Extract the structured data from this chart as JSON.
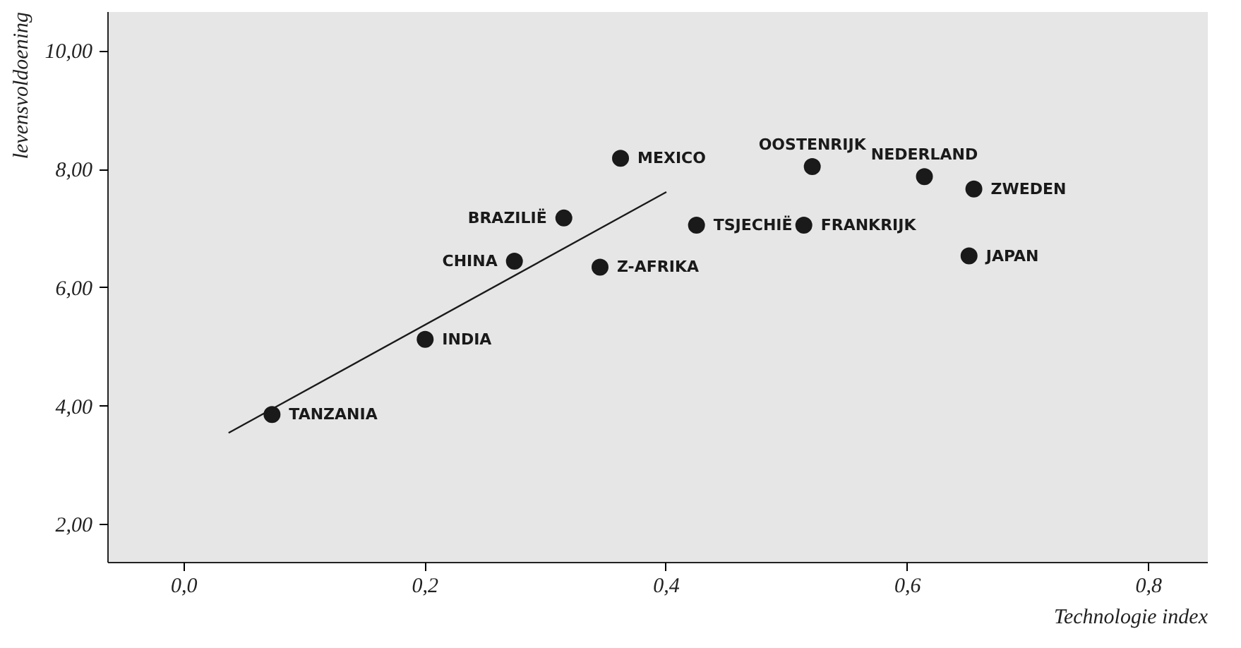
{
  "chart_data": {
    "type": "scatter",
    "xlabel": "Technologie index",
    "ylabel": "levensvoldoening",
    "xlim": [
      -0.063,
      0.849
    ],
    "ylim": [
      1.36,
      10.66
    ],
    "xticks": [
      {
        "value": 0,
        "label": "0,0"
      },
      {
        "value": 0.2,
        "label": "0,2"
      },
      {
        "value": 0.4,
        "label": "0,4"
      },
      {
        "value": 0.6,
        "label": "0,6"
      },
      {
        "value": 0.8,
        "label": "0,8"
      }
    ],
    "yticks": [
      {
        "value": 2,
        "label": "2,00"
      },
      {
        "value": 4,
        "label": "4,00"
      },
      {
        "value": 6,
        "label": "6,00"
      },
      {
        "value": 8,
        "label": "8,00"
      },
      {
        "value": 10,
        "label": "10,00"
      }
    ],
    "series": [
      {
        "marker": "circle",
        "color": "#1a1a1a",
        "x": [
          0.073,
          0.2,
          0.274,
          0.315,
          0.345,
          0.362,
          0.425,
          0.514,
          0.521,
          0.614,
          0.655,
          0.651
        ],
        "values": [
          3.86,
          5.13,
          6.45,
          7.18,
          6.35,
          8.19,
          7.06,
          7.06,
          8.05,
          7.88,
          7.67,
          6.54
        ]
      },
      {
        "type": "line",
        "color": "#1a1a1a",
        "x": [
          0.037,
          0.4
        ],
        "values": [
          3.55,
          7.62
        ]
      }
    ],
    "annotations": [
      {
        "text": "TANZANIA",
        "x": 0.073,
        "y": 3.86
      },
      {
        "text": "INDIA",
        "x": 0.2,
        "y": 5.13
      },
      {
        "text": "CHINA",
        "x": 0.274,
        "y": 6.45
      },
      {
        "text": "BRAZILIË",
        "x": 0.315,
        "y": 7.18
      },
      {
        "text": "Z-AFRIKA",
        "x": 0.345,
        "y": 6.35
      },
      {
        "text": "MEXICO",
        "x": 0.362,
        "y": 8.19
      },
      {
        "text": "TSJECHIË",
        "x": 0.425,
        "y": 7.06
      },
      {
        "text": "FRANKRIJK",
        "x": 0.514,
        "y": 7.06
      },
      {
        "text": "OOSTENRIJK",
        "x": 0.521,
        "y": 8.05
      },
      {
        "text": "NEDERLAND",
        "x": 0.614,
        "y": 7.88
      },
      {
        "text": "ZWEDEN",
        "x": 0.655,
        "y": 7.67
      },
      {
        "text": "JAPAN",
        "x": 0.651,
        "y": 6.54
      }
    ]
  }
}
